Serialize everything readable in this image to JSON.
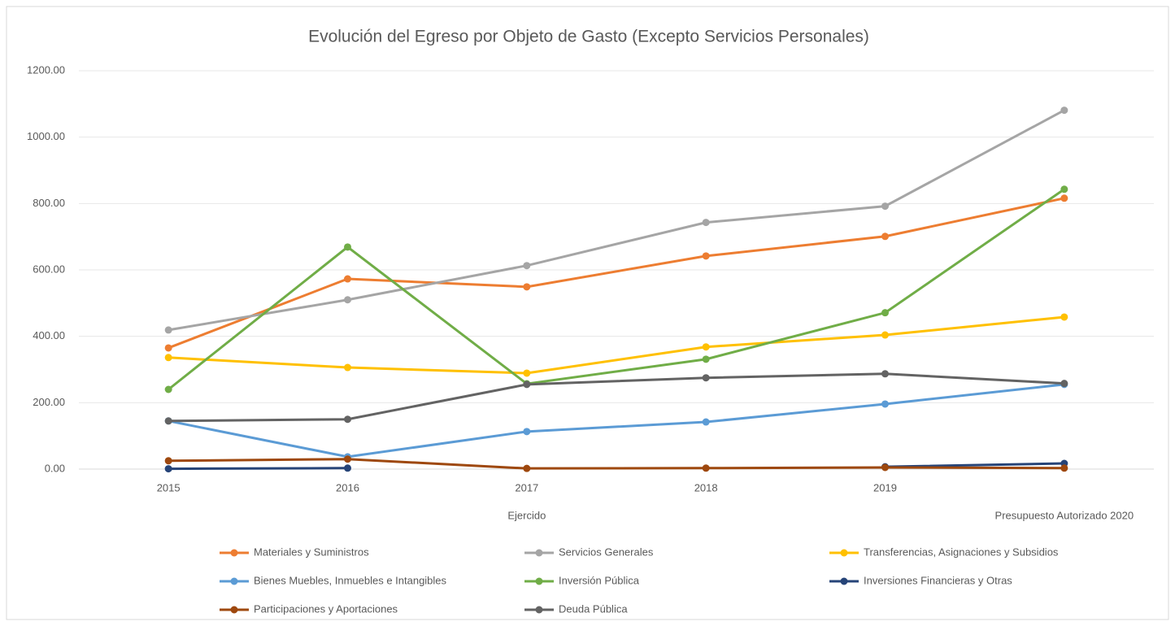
{
  "chart_data": {
    "type": "line",
    "title": "Evolución del Egreso por Objeto de Gasto (Excepto Servicios Personales)",
    "categories": [
      "2015",
      "2016",
      "2017",
      "2018",
      "2019",
      null
    ],
    "x_group_labels": [
      "Ejercido",
      "Presupuesto Autorizado 2020"
    ],
    "series": [
      {
        "name": "Materiales y Suministros",
        "color": "#ed7d31",
        "values": [
          365,
          573,
          549,
          642,
          701,
          816
        ]
      },
      {
        "name": "Servicios Generales",
        "color": "#a5a5a5",
        "values": [
          419,
          510,
          613,
          743,
          792,
          1081
        ]
      },
      {
        "name": "Transferencias, Asignaciones y Subsidios",
        "color": "#ffc000",
        "values": [
          336,
          306,
          289,
          368,
          404,
          458
        ]
      },
      {
        "name": "Bienes Muebles, Inmuebles e Intangibles",
        "color": "#5b9bd5",
        "values": [
          145,
          37,
          113,
          142,
          196,
          255
        ]
      },
      {
        "name": "Inversión Pública",
        "color": "#70ad47",
        "values": [
          240,
          669,
          257,
          331,
          471,
          843
        ]
      },
      {
        "name": "Inversiones Financieras y Otras",
        "color": "#264478",
        "values": [
          1,
          3,
          null,
          null,
          7,
          17
        ]
      },
      {
        "name": "Participaciones y Aportaciones",
        "color": "#9e480e",
        "values": [
          25,
          30,
          2,
          3,
          5,
          3
        ]
      },
      {
        "name": "Deuda Pública",
        "color": "#636363",
        "values": [
          145,
          150,
          255,
          275,
          287,
          258
        ]
      }
    ],
    "ylim": [
      0,
      1200
    ],
    "yticks": [
      {
        "value": 0,
        "label": "0.00"
      },
      {
        "value": 200,
        "label": "200.00"
      },
      {
        "value": 400,
        "label": "400.00"
      },
      {
        "value": 600,
        "label": "600.00"
      },
      {
        "value": 800,
        "label": "800.00"
      },
      {
        "value": 1000,
        "label": "1000.00"
      },
      {
        "value": 1200,
        "label": "1200.00"
      }
    ],
    "grid": true,
    "legend": "bottom"
  }
}
